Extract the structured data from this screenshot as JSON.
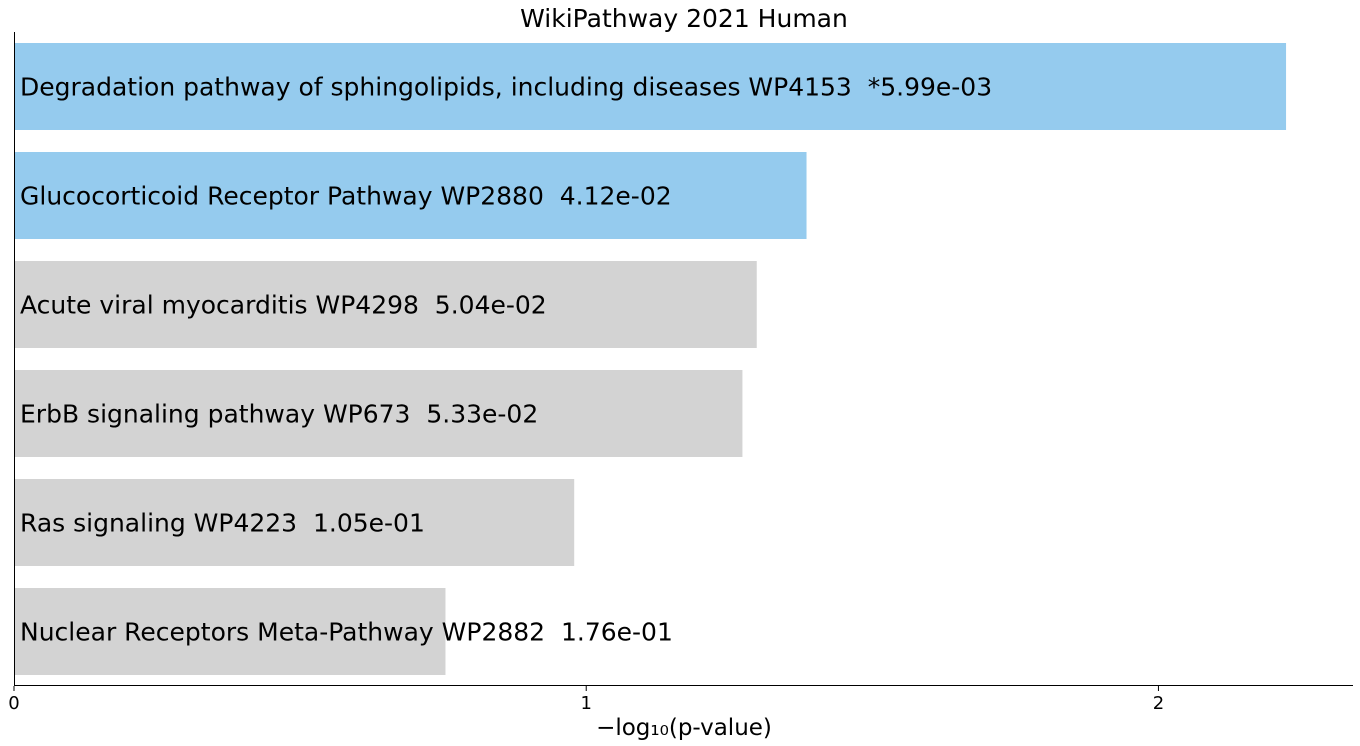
{
  "chart_data": {
    "type": "bar",
    "orientation": "horizontal",
    "title": "WikiPathway 2021 Human",
    "xlabel": "−log₁₀(p-value)",
    "ylabel": "",
    "xlim": [
      0,
      2.34
    ],
    "xticks": [
      0,
      1,
      2
    ],
    "grid": false,
    "legend": "none",
    "significant_color": "#95cbee",
    "nonsignificant_color": "#d3d3d3",
    "bars": [
      {
        "term": "Degradation pathway of sphingolipids, including diseases WP4153",
        "p_value_text": "*5.99e-03",
        "value": 2.223,
        "significant": true
      },
      {
        "term": "Glucocorticoid Receptor Pathway WP2880",
        "p_value_text": "4.12e-02",
        "value": 1.385,
        "significant": true
      },
      {
        "term": "Acute viral myocarditis WP4298",
        "p_value_text": "5.04e-02",
        "value": 1.298,
        "significant": false
      },
      {
        "term": "ErbB signaling pathway WP673",
        "p_value_text": "5.33e-02",
        "value": 1.273,
        "significant": false
      },
      {
        "term": "Ras signaling WP4223",
        "p_value_text": "1.05e-01",
        "value": 0.979,
        "significant": false
      },
      {
        "term": "Nuclear Receptors Meta-Pathway WP2882",
        "p_value_text": "1.76e-01",
        "value": 0.754,
        "significant": false
      }
    ]
  }
}
